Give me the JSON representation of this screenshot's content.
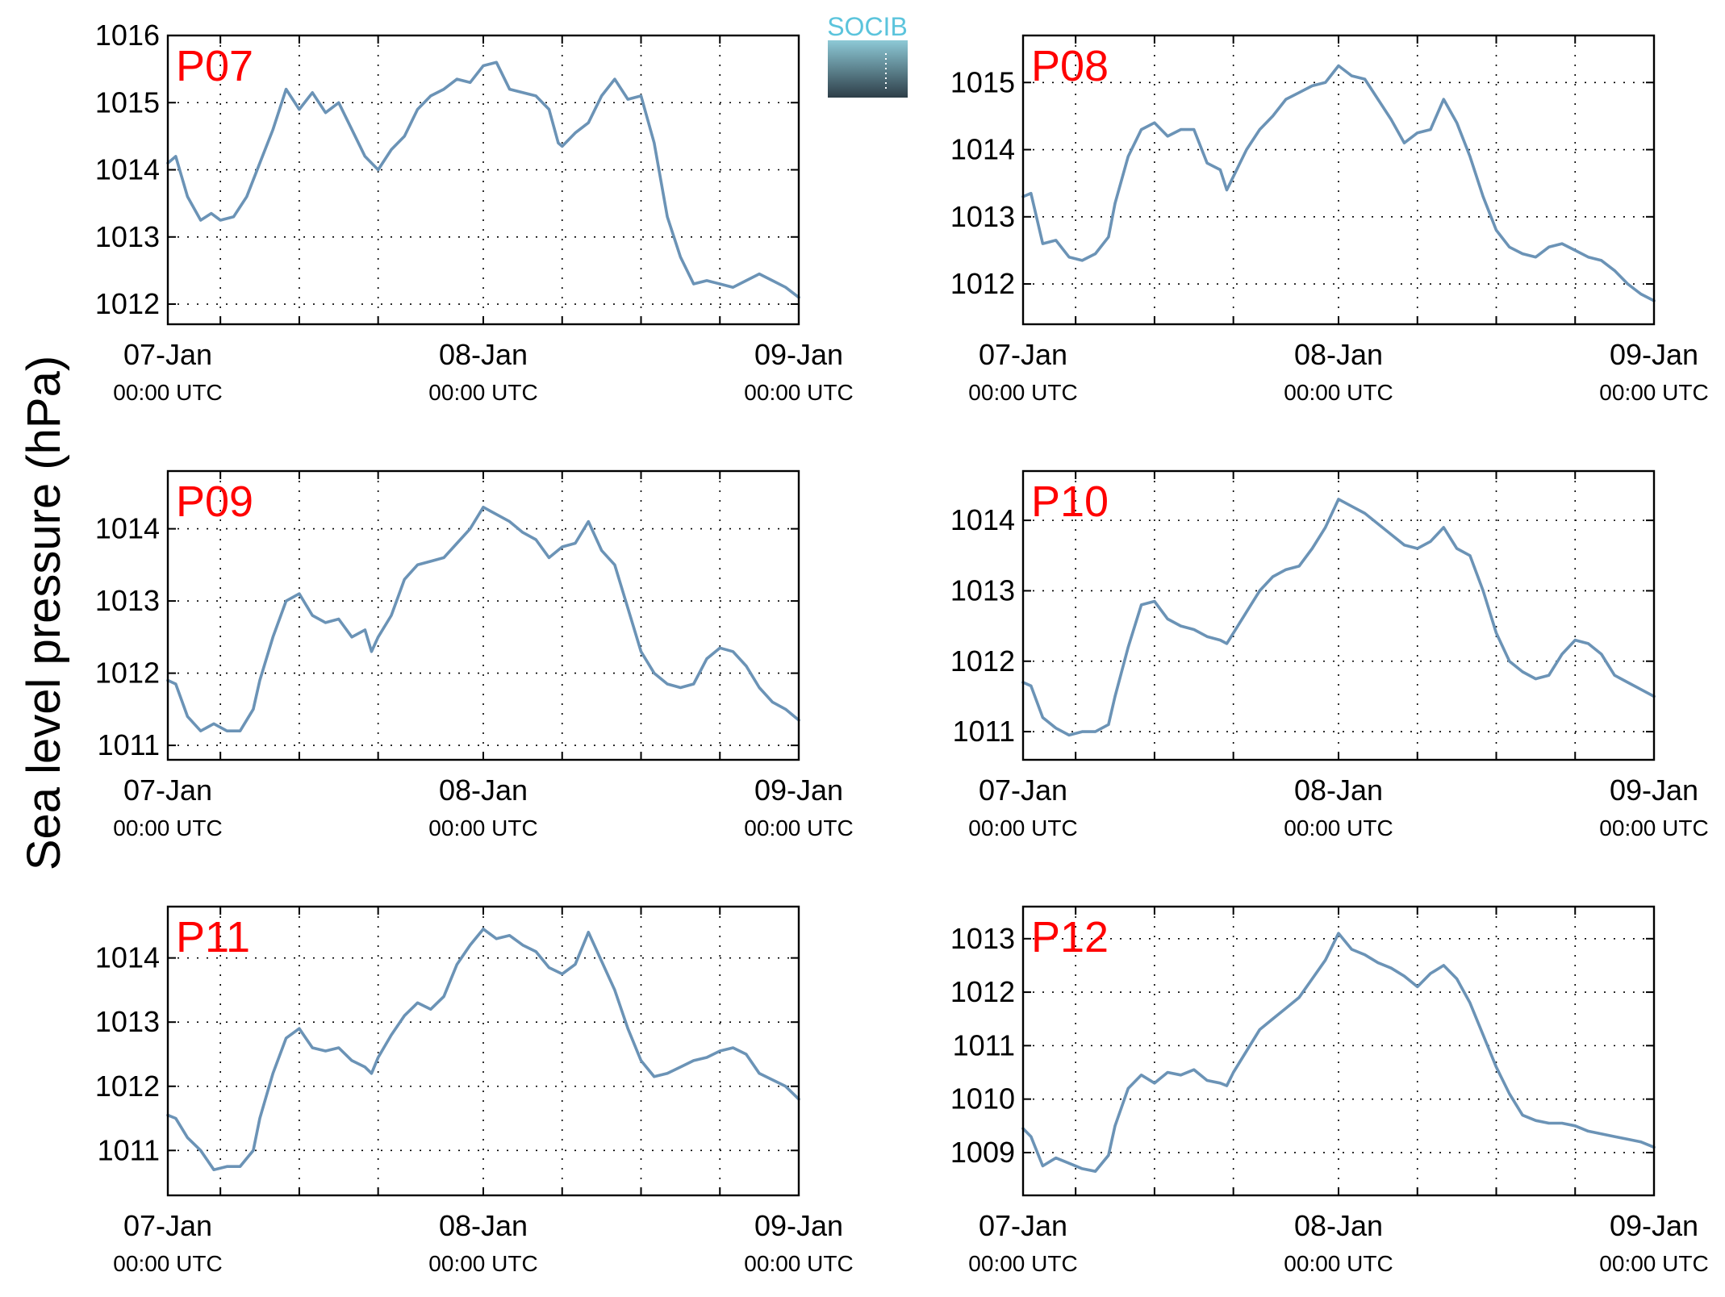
{
  "figure": {
    "ylabel": "Sea level pressure (hPa)",
    "logo": {
      "text": "SOCIB",
      "colors": {
        "text": "#5bc4dc",
        "top": "#8dc9d6",
        "bottom": "#2e3e48"
      }
    }
  },
  "colors": {
    "series": "#6b93b6",
    "title": "#ff0000",
    "axes": "#000000",
    "background": "#ffffff"
  },
  "chart_data": [
    {
      "type": "line",
      "title": "P07",
      "xlabel": "",
      "ylabel": "Sea level pressure (hPa)",
      "x_unit": "hours since 07-Jan 00:00 UTC",
      "xlim": [
        0,
        48
      ],
      "ylim": [
        1011.7,
        1016
      ],
      "grid": true,
      "x_ticks": [
        {
          "label": "07-Jan",
          "sub": "00:00 UTC"
        },
        {
          "label": "08-Jan",
          "sub": "00:00 UTC"
        },
        {
          "label": "09-Jan",
          "sub": "00:00 UTC"
        }
      ],
      "y_ticks": [
        "1012",
        "1013",
        "1014",
        "1015",
        "1016"
      ],
      "series": [
        {
          "x": [
            0,
            0.6,
            1.5,
            2.5,
            3.3,
            4,
            5,
            6,
            7,
            8,
            9,
            10,
            11,
            12,
            13,
            14,
            15,
            16,
            17,
            18,
            19,
            20,
            21,
            22,
            23,
            24,
            25,
            26,
            27,
            28,
            29,
            29.7,
            30,
            31,
            32,
            33,
            34,
            35,
            36,
            37,
            38,
            39,
            40,
            41,
            42,
            43,
            44,
            45,
            46,
            47,
            48
          ],
          "y": [
            1014.1,
            1014.2,
            1013.6,
            1013.25,
            1013.35,
            1013.25,
            1013.3,
            1013.6,
            1014.1,
            1014.6,
            1015.2,
            1014.9,
            1015.15,
            1014.85,
            1015.0,
            1014.6,
            1014.2,
            1014.0,
            1014.3,
            1014.5,
            1014.9,
            1015.1,
            1015.2,
            1015.35,
            1015.3,
            1015.55,
            1015.6,
            1015.2,
            1015.15,
            1015.1,
            1014.9,
            1014.4,
            1014.35,
            1014.55,
            1014.7,
            1015.1,
            1015.35,
            1015.05,
            1015.1,
            1014.4,
            1013.3,
            1012.7,
            1012.3,
            1012.35,
            1012.3,
            1012.25,
            1012.35,
            1012.45,
            1012.35,
            1012.25,
            1012.1
          ]
        }
      ]
    },
    {
      "type": "line",
      "title": "P08",
      "xlabel": "",
      "ylabel": "Sea level pressure (hPa)",
      "x_unit": "hours since 07-Jan 00:00 UTC",
      "xlim": [
        0,
        48
      ],
      "ylim": [
        1011.4,
        1015.7
      ],
      "grid": true,
      "x_ticks": [
        {
          "label": "07-Jan",
          "sub": "00:00 UTC"
        },
        {
          "label": "08-Jan",
          "sub": "00:00 UTC"
        },
        {
          "label": "09-Jan",
          "sub": "00:00 UTC"
        }
      ],
      "y_ticks": [
        "1012",
        "1013",
        "1014",
        "1015"
      ],
      "series": [
        {
          "x": [
            0,
            0.6,
            1.5,
            2.5,
            3.5,
            4.5,
            5.5,
            6.5,
            7,
            8,
            9,
            10,
            11,
            12,
            13,
            14,
            15,
            15.5,
            16,
            17,
            18,
            19,
            20,
            21,
            22,
            23,
            24,
            25,
            26,
            27,
            28,
            29,
            30,
            31,
            32,
            33,
            34,
            35,
            36,
            37,
            38,
            39,
            40,
            41,
            42,
            43,
            44,
            45,
            46,
            47,
            48
          ],
          "y": [
            1013.3,
            1013.35,
            1012.6,
            1012.65,
            1012.4,
            1012.35,
            1012.45,
            1012.7,
            1013.2,
            1013.9,
            1014.3,
            1014.4,
            1014.2,
            1014.3,
            1014.3,
            1013.8,
            1013.7,
            1013.4,
            1013.6,
            1014.0,
            1014.3,
            1014.5,
            1014.75,
            1014.85,
            1014.95,
            1015.0,
            1015.25,
            1015.1,
            1015.05,
            1014.75,
            1014.45,
            1014.1,
            1014.25,
            1014.3,
            1014.75,
            1014.4,
            1013.9,
            1013.3,
            1012.8,
            1012.55,
            1012.45,
            1012.4,
            1012.55,
            1012.6,
            1012.5,
            1012.4,
            1012.35,
            1012.2,
            1012.0,
            1011.85,
            1011.75
          ]
        }
      ]
    },
    {
      "type": "line",
      "title": "P09",
      "xlabel": "",
      "ylabel": "Sea level pressure (hPa)",
      "x_unit": "hours since 07-Jan 00:00 UTC",
      "xlim": [
        0,
        48
      ],
      "ylim": [
        1010.8,
        1014.8
      ],
      "grid": true,
      "x_ticks": [
        {
          "label": "07-Jan",
          "sub": "00:00 UTC"
        },
        {
          "label": "08-Jan",
          "sub": "00:00 UTC"
        },
        {
          "label": "09-Jan",
          "sub": "00:00 UTC"
        }
      ],
      "y_ticks": [
        "1011",
        "1012",
        "1013",
        "1014"
      ],
      "series": [
        {
          "x": [
            0,
            0.6,
            1.5,
            2.5,
            3.5,
            4.5,
            5.5,
            6.5,
            7,
            8,
            9,
            10,
            11,
            12,
            13,
            14,
            15,
            15.5,
            16,
            17,
            18,
            19,
            20,
            21,
            22,
            23,
            24,
            25,
            26,
            27,
            28,
            29,
            30,
            31,
            32,
            33,
            34,
            35,
            36,
            37,
            38,
            39,
            40,
            41,
            42,
            43,
            44,
            45,
            46,
            47,
            48
          ],
          "y": [
            1011.9,
            1011.85,
            1011.4,
            1011.2,
            1011.3,
            1011.2,
            1011.2,
            1011.5,
            1011.9,
            1012.5,
            1013.0,
            1013.1,
            1012.8,
            1012.7,
            1012.75,
            1012.5,
            1012.6,
            1012.3,
            1012.5,
            1012.8,
            1013.3,
            1013.5,
            1013.55,
            1013.6,
            1013.8,
            1014.0,
            1014.3,
            1014.2,
            1014.1,
            1013.95,
            1013.85,
            1013.6,
            1013.75,
            1013.8,
            1014.1,
            1013.7,
            1013.5,
            1012.9,
            1012.3,
            1012.0,
            1011.85,
            1011.8,
            1011.85,
            1012.2,
            1012.35,
            1012.3,
            1012.1,
            1011.8,
            1011.6,
            1011.5,
            1011.35
          ]
        }
      ]
    },
    {
      "type": "line",
      "title": "P10",
      "xlabel": "",
      "ylabel": "Sea level pressure (hPa)",
      "x_unit": "hours since 07-Jan 00:00 UTC",
      "xlim": [
        0,
        48
      ],
      "ylim": [
        1010.6,
        1014.7
      ],
      "grid": true,
      "x_ticks": [
        {
          "label": "07-Jan",
          "sub": "00:00 UTC"
        },
        {
          "label": "08-Jan",
          "sub": "00:00 UTC"
        },
        {
          "label": "09-Jan",
          "sub": "00:00 UTC"
        }
      ],
      "y_ticks": [
        "1011",
        "1012",
        "1013",
        "1014"
      ],
      "series": [
        {
          "x": [
            0,
            0.6,
            1.5,
            2.5,
            3.5,
            4.5,
            5.5,
            6.5,
            7,
            8,
            9,
            10,
            11,
            12,
            13,
            14,
            15,
            15.5,
            16,
            17,
            18,
            19,
            20,
            21,
            22,
            23,
            24,
            25,
            26,
            27,
            28,
            29,
            30,
            31,
            32,
            33,
            34,
            35,
            36,
            37,
            38,
            39,
            40,
            41,
            42,
            43,
            44,
            45,
            46,
            47,
            48
          ],
          "y": [
            1011.7,
            1011.65,
            1011.2,
            1011.05,
            1010.95,
            1011.0,
            1011.0,
            1011.1,
            1011.5,
            1012.2,
            1012.8,
            1012.85,
            1012.6,
            1012.5,
            1012.45,
            1012.35,
            1012.3,
            1012.25,
            1012.4,
            1012.7,
            1013.0,
            1013.2,
            1013.3,
            1013.35,
            1013.6,
            1013.9,
            1014.3,
            1014.2,
            1014.1,
            1013.95,
            1013.8,
            1013.65,
            1013.6,
            1013.7,
            1013.9,
            1013.6,
            1013.5,
            1013.0,
            1012.4,
            1012.0,
            1011.85,
            1011.75,
            1011.8,
            1012.1,
            1012.3,
            1012.25,
            1012.1,
            1011.8,
            1011.7,
            1011.6,
            1011.5
          ]
        }
      ]
    },
    {
      "type": "line",
      "title": "P11",
      "xlabel": "",
      "ylabel": "Sea level pressure (hPa)",
      "x_unit": "hours since 07-Jan 00:00 UTC",
      "xlim": [
        0,
        48
      ],
      "ylim": [
        1010.3,
        1014.8
      ],
      "grid": true,
      "x_ticks": [
        {
          "label": "07-Jan",
          "sub": "00:00 UTC"
        },
        {
          "label": "08-Jan",
          "sub": "00:00 UTC"
        },
        {
          "label": "09-Jan",
          "sub": "00:00 UTC"
        }
      ],
      "y_ticks": [
        "1011",
        "1012",
        "1013",
        "1014"
      ],
      "series": [
        {
          "x": [
            0,
            0.6,
            1.5,
            2.5,
            3.5,
            4.5,
            5.5,
            6.5,
            7,
            8,
            9,
            10,
            11,
            12,
            13,
            14,
            15,
            15.5,
            16,
            17,
            18,
            19,
            20,
            21,
            22,
            23,
            24,
            25,
            26,
            27,
            28,
            29,
            30,
            31,
            32,
            33,
            34,
            35,
            36,
            37,
            38,
            39,
            40,
            41,
            42,
            43,
            44,
            45,
            46,
            47,
            48
          ],
          "y": [
            1011.55,
            1011.5,
            1011.2,
            1011.0,
            1010.7,
            1010.75,
            1010.75,
            1011.0,
            1011.5,
            1012.2,
            1012.75,
            1012.9,
            1012.6,
            1012.55,
            1012.6,
            1012.4,
            1012.3,
            1012.2,
            1012.45,
            1012.8,
            1013.1,
            1013.3,
            1013.2,
            1013.4,
            1013.9,
            1014.2,
            1014.45,
            1014.3,
            1014.35,
            1014.2,
            1014.1,
            1013.85,
            1013.75,
            1013.9,
            1014.4,
            1013.95,
            1013.5,
            1012.9,
            1012.4,
            1012.15,
            1012.2,
            1012.3,
            1012.4,
            1012.45,
            1012.55,
            1012.6,
            1012.5,
            1012.2,
            1012.1,
            1012.0,
            1011.8
          ]
        }
      ]
    },
    {
      "type": "line",
      "title": "P12",
      "xlabel": "",
      "ylabel": "Sea level pressure (hPa)",
      "x_unit": "hours since 07-Jan 00:00 UTC",
      "xlim": [
        0,
        48
      ],
      "ylim": [
        1008.2,
        1013.6
      ],
      "grid": true,
      "x_ticks": [
        {
          "label": "07-Jan",
          "sub": "00:00 UTC"
        },
        {
          "label": "08-Jan",
          "sub": "00:00 UTC"
        },
        {
          "label": "09-Jan",
          "sub": "00:00 UTC"
        }
      ],
      "y_ticks": [
        "1009",
        "1010",
        "1011",
        "1012",
        "1013"
      ],
      "series": [
        {
          "x": [
            0,
            0.6,
            1.5,
            2.5,
            3.5,
            4.5,
            5.5,
            6.5,
            7,
            8,
            9,
            10,
            11,
            12,
            13,
            14,
            15,
            15.5,
            16,
            17,
            18,
            19,
            20,
            21,
            22,
            23,
            24,
            25,
            26,
            27,
            28,
            29,
            30,
            31,
            32,
            33,
            34,
            35,
            36,
            37,
            38,
            39,
            40,
            41,
            42,
            43,
            44,
            45,
            46,
            47,
            48
          ],
          "y": [
            1009.45,
            1009.3,
            1008.75,
            1008.9,
            1008.8,
            1008.7,
            1008.65,
            1008.95,
            1009.5,
            1010.2,
            1010.45,
            1010.3,
            1010.5,
            1010.45,
            1010.55,
            1010.35,
            1010.3,
            1010.25,
            1010.5,
            1010.9,
            1011.3,
            1011.5,
            1011.7,
            1011.9,
            1012.25,
            1012.6,
            1013.1,
            1012.8,
            1012.7,
            1012.55,
            1012.45,
            1012.3,
            1012.1,
            1012.35,
            1012.5,
            1012.25,
            1011.8,
            1011.2,
            1010.6,
            1010.1,
            1009.7,
            1009.6,
            1009.55,
            1009.55,
            1009.5,
            1009.4,
            1009.35,
            1009.3,
            1009.25,
            1009.2,
            1009.1
          ]
        }
      ]
    }
  ]
}
